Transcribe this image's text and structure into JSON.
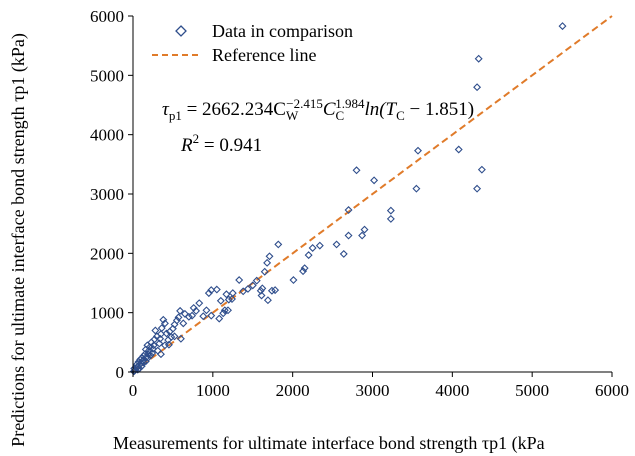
{
  "chart_data": {
    "type": "scatter",
    "title": "",
    "xlabel": "Measurements for ultimate interface bond strength τp1 (kPa",
    "ylabel": "Predictions for ultimate interface bond strength τp1 (kPa)",
    "xlim": [
      0,
      6000
    ],
    "ylim": [
      0,
      6000
    ],
    "xticks": [
      "0",
      "1000",
      "2000",
      "3000",
      "4000",
      "5000",
      "6000"
    ],
    "yticks": [
      "0",
      "1000",
      "2000",
      "3000",
      "4000",
      "5000",
      "6000"
    ],
    "grid": false,
    "legend_position": "top-left",
    "equation": {
      "tau": "τ",
      "sub": "p1",
      "eq_rest": " = 2662.234C",
      "w_sub": "W",
      "w_sup": "−2.415",
      "c": "C",
      "c_sub": "C",
      "c_sup": "1.984",
      "ln": "ln(T",
      "t_sub": "C",
      "t_rest": " − 1.851)"
    },
    "r2": {
      "label": "R",
      "sup": "2",
      "value": " = 0.941"
    },
    "series": [
      {
        "name": "Data in comparison",
        "marker": "diamond-open",
        "color": "#2f4e8c",
        "points": [
          [
            5380,
            5830
          ],
          [
            4330,
            5280
          ],
          [
            4310,
            4800
          ],
          [
            4370,
            3410
          ],
          [
            4310,
            3090
          ],
          [
            4080,
            3750
          ],
          [
            3570,
            3730
          ],
          [
            3550,
            3090
          ],
          [
            3020,
            3230
          ],
          [
            2800,
            3400
          ],
          [
            2900,
            2400
          ],
          [
            2700,
            2730
          ],
          [
            2870,
            2300
          ],
          [
            3230,
            2580
          ],
          [
            3230,
            2720
          ],
          [
            2700,
            2300
          ],
          [
            2640,
            1990
          ],
          [
            2550,
            2150
          ],
          [
            2340,
            2130
          ],
          [
            2250,
            2090
          ],
          [
            2200,
            1970
          ],
          [
            2150,
            1750
          ],
          [
            2130,
            1700
          ],
          [
            2010,
            1550
          ],
          [
            1820,
            2150
          ],
          [
            1710,
            1950
          ],
          [
            1680,
            1840
          ],
          [
            1650,
            1690
          ],
          [
            1620,
            1410
          ],
          [
            1780,
            1380
          ],
          [
            1740,
            1370
          ],
          [
            1610,
            1290
          ],
          [
            1690,
            1210
          ],
          [
            1550,
            1540
          ],
          [
            1500,
            1460
          ],
          [
            1440,
            1400
          ],
          [
            1380,
            1360
          ],
          [
            1330,
            1550
          ],
          [
            1250,
            1330
          ],
          [
            1200,
            1220
          ],
          [
            1170,
            1310
          ],
          [
            1150,
            1040
          ],
          [
            1130,
            990
          ],
          [
            1100,
            1200
          ],
          [
            1050,
            1390
          ],
          [
            980,
            1380
          ],
          [
            950,
            1330
          ],
          [
            920,
            1040
          ],
          [
            880,
            940
          ],
          [
            830,
            1160
          ],
          [
            790,
            1030
          ],
          [
            760,
            1080
          ],
          [
            740,
            950
          ],
          [
            700,
            930
          ],
          [
            650,
            980
          ],
          [
            630,
            820
          ],
          [
            590,
            1030
          ],
          [
            570,
            920
          ],
          [
            550,
            870
          ],
          [
            520,
            800
          ],
          [
            520,
            600
          ],
          [
            500,
            730
          ],
          [
            480,
            590
          ],
          [
            460,
            680
          ],
          [
            440,
            540
          ],
          [
            420,
            650
          ],
          [
            400,
            820
          ],
          [
            380,
            880
          ],
          [
            360,
            740
          ],
          [
            350,
            640
          ],
          [
            340,
            560
          ],
          [
            330,
            480
          ],
          [
            300,
            600
          ],
          [
            280,
            700
          ],
          [
            270,
            550
          ],
          [
            260,
            450
          ],
          [
            250,
            390
          ],
          [
            240,
            320
          ],
          [
            230,
            500
          ],
          [
            210,
            420
          ],
          [
            200,
            360
          ],
          [
            190,
            300
          ],
          [
            180,
            450
          ],
          [
            170,
            250
          ],
          [
            160,
            380
          ],
          [
            150,
            300
          ],
          [
            140,
            210
          ],
          [
            130,
            270
          ],
          [
            120,
            190
          ],
          [
            110,
            230
          ],
          [
            100,
            150
          ],
          [
            90,
            210
          ],
          [
            80,
            120
          ],
          [
            70,
            170
          ],
          [
            60,
            90
          ],
          [
            50,
            130
          ],
          [
            40,
            70
          ],
          [
            30,
            40
          ],
          [
            20,
            20
          ],
          [
            15,
            60
          ],
          [
            10,
            10
          ],
          [
            60,
            40
          ],
          [
            80,
            60
          ],
          [
            110,
            100
          ],
          [
            130,
            160
          ],
          [
            160,
            180
          ],
          [
            190,
            240
          ],
          [
            220,
            280
          ],
          [
            350,
            300
          ],
          [
            310,
            360
          ],
          [
            400,
            450
          ],
          [
            450,
            460
          ],
          [
            600,
            560
          ],
          [
            1240,
            1230
          ],
          [
            1190,
            1040
          ],
          [
            1600,
            1370
          ],
          [
            1080,
            900
          ],
          [
            980,
            950
          ]
        ]
      },
      {
        "name": "Reference line",
        "style": "dashed",
        "color": "#e07b2a",
        "points": [
          [
            0,
            0
          ],
          [
            6000,
            6000
          ]
        ]
      }
    ]
  }
}
